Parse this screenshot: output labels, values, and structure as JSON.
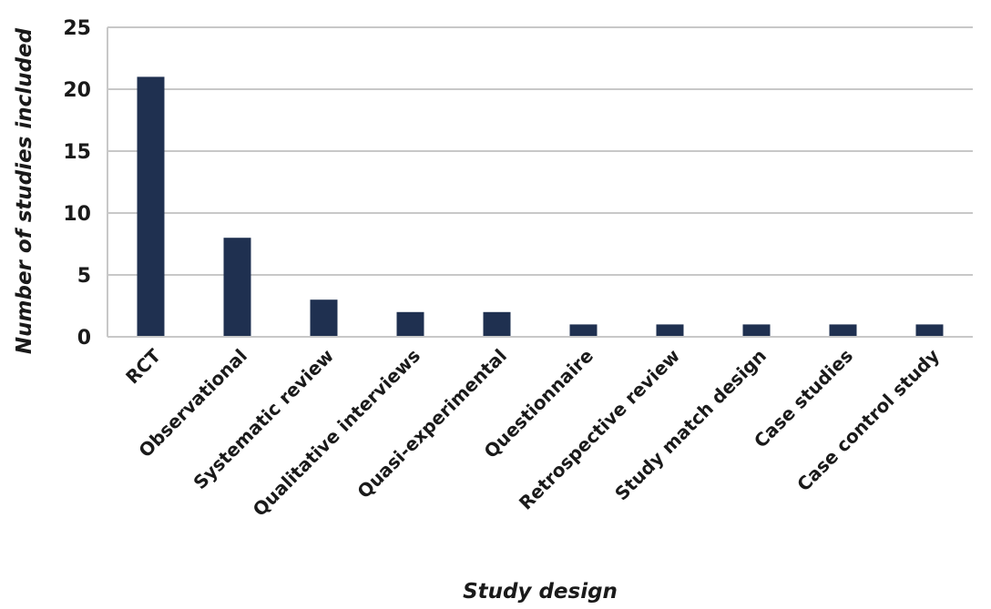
{
  "chart_data": {
    "type": "bar",
    "categories": [
      "RCT",
      "Observational",
      "Systematic review",
      "Qualitative interviews",
      "Quasi-experimental",
      "Questionnaire",
      "Retrospective review",
      "Study match design",
      "Case studies",
      "Case control study"
    ],
    "values": [
      21,
      8,
      3,
      2,
      2,
      1,
      1,
      1,
      1,
      1
    ],
    "title": "",
    "xlabel": "Study design",
    "ylabel": "Number of studies included",
    "ylim": [
      0,
      25
    ],
    "yticks": [
      0,
      5,
      10,
      15,
      20,
      25
    ],
    "grid": true,
    "legend": "none",
    "bar_color": "#1f3050",
    "grid_color": "#c8c8c8"
  }
}
